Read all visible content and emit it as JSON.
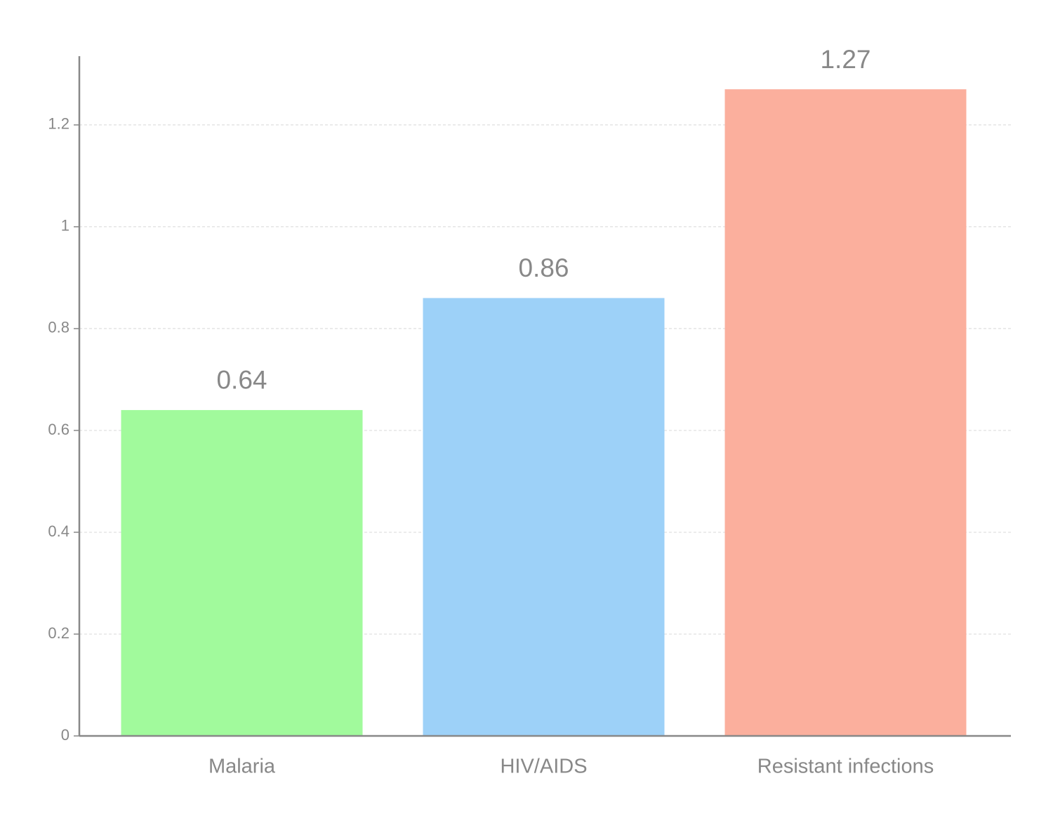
{
  "chart_data": {
    "type": "bar",
    "categories": [
      "Malaria",
      "HIV/AIDS",
      "Resistant infections"
    ],
    "values": [
      0.64,
      0.86,
      1.27
    ],
    "colors": [
      "#a1fa9c",
      "#9dd1f8",
      "#fbaf9d"
    ],
    "ylim": [
      0,
      1.335
    ],
    "yticks": [
      0,
      0.2,
      0.4,
      0.6,
      0.8,
      1,
      1.2
    ],
    "grid": true
  }
}
